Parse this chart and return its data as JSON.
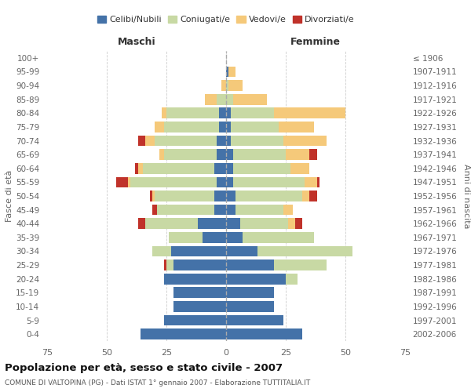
{
  "age_groups": [
    "0-4",
    "5-9",
    "10-14",
    "15-19",
    "20-24",
    "25-29",
    "30-34",
    "35-39",
    "40-44",
    "45-49",
    "50-54",
    "55-59",
    "60-64",
    "65-69",
    "70-74",
    "75-79",
    "80-84",
    "85-89",
    "90-94",
    "95-99",
    "100+"
  ],
  "birth_years": [
    "2002-2006",
    "1997-2001",
    "1992-1996",
    "1987-1991",
    "1982-1986",
    "1977-1981",
    "1972-1976",
    "1967-1971",
    "1962-1966",
    "1957-1961",
    "1952-1956",
    "1947-1951",
    "1942-1946",
    "1937-1941",
    "1932-1936",
    "1927-1931",
    "1922-1926",
    "1917-1921",
    "1912-1916",
    "1907-1911",
    "≤ 1906"
  ],
  "males": {
    "celibi": [
      36,
      26,
      22,
      22,
      26,
      22,
      23,
      10,
      12,
      5,
      5,
      4,
      5,
      4,
      4,
      3,
      3,
      0,
      0,
      0,
      0
    ],
    "coniugati": [
      0,
      0,
      0,
      0,
      0,
      3,
      8,
      14,
      22,
      24,
      25,
      36,
      30,
      22,
      26,
      23,
      22,
      4,
      0,
      0,
      0
    ],
    "vedovi": [
      0,
      0,
      0,
      0,
      0,
      0,
      0,
      0,
      0,
      0,
      1,
      1,
      2,
      2,
      4,
      4,
      2,
      5,
      2,
      0,
      0
    ],
    "divorziati": [
      0,
      0,
      0,
      0,
      0,
      1,
      0,
      0,
      3,
      2,
      1,
      5,
      1,
      0,
      3,
      0,
      0,
      0,
      0,
      0,
      0
    ]
  },
  "females": {
    "nubili": [
      32,
      24,
      20,
      20,
      25,
      20,
      13,
      7,
      6,
      4,
      4,
      3,
      3,
      3,
      2,
      2,
      2,
      0,
      0,
      1,
      0
    ],
    "coniugate": [
      0,
      0,
      0,
      0,
      5,
      22,
      40,
      30,
      20,
      20,
      28,
      30,
      24,
      22,
      22,
      20,
      18,
      3,
      1,
      0,
      0
    ],
    "vedove": [
      0,
      0,
      0,
      0,
      0,
      0,
      0,
      0,
      3,
      4,
      3,
      5,
      8,
      10,
      18,
      15,
      30,
      14,
      6,
      3,
      0
    ],
    "divorziate": [
      0,
      0,
      0,
      0,
      0,
      0,
      0,
      0,
      3,
      0,
      3,
      1,
      0,
      3,
      0,
      0,
      0,
      0,
      0,
      0,
      0
    ]
  },
  "colors": {
    "celibi": "#4472a8",
    "coniugati": "#c8d9a4",
    "vedovi": "#f5c97a",
    "divorziati": "#c0322a"
  },
  "xlim": 75,
  "title": "Popolazione per età, sesso e stato civile - 2007",
  "subtitle": "COMUNE DI VALTOPINA (PG) - Dati ISTAT 1° gennaio 2007 - Elaborazione TUTTITALIA.IT",
  "ylabel_left": "Fasce di età",
  "ylabel_right": "Anni di nascita",
  "xlabel_maschi": "Maschi",
  "xlabel_femmine": "Femmine"
}
